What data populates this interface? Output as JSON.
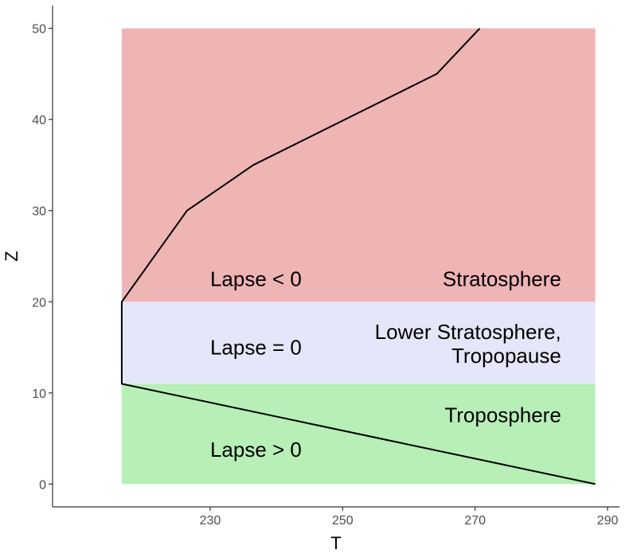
{
  "chart_data": {
    "type": "line",
    "title": "",
    "xlabel": "T",
    "ylabel": "Z",
    "xlim": [
      206.2,
      291.8
    ],
    "ylim": [
      -2.5,
      52.5
    ],
    "x_ticks": [
      230,
      250,
      270,
      290
    ],
    "y_ticks": [
      0,
      10,
      20,
      30,
      40,
      50
    ],
    "grid": false,
    "legend": "none",
    "regions": [
      {
        "name": "troposphere",
        "x_range": [
          216.65,
          288.15
        ],
        "y_range": [
          0,
          11
        ],
        "color": "#b7efb7"
      },
      {
        "name": "tropopause",
        "x_range": [
          216.65,
          288.15
        ],
        "y_range": [
          11,
          20
        ],
        "color": "#e6e6fa"
      },
      {
        "name": "stratosphere",
        "x_range": [
          216.65,
          288.15
        ],
        "y_range": [
          20,
          50
        ],
        "color": "#efb4b4"
      }
    ],
    "series": [
      {
        "color": "#000000",
        "points": [
          {
            "x": 288.15,
            "y": 0
          },
          {
            "x": 216.65,
            "y": 11
          },
          {
            "x": 216.65,
            "y": 20
          },
          {
            "x": 226.5,
            "y": 30
          },
          {
            "x": 236.5,
            "y": 35
          },
          {
            "x": 264.2,
            "y": 45
          },
          {
            "x": 270.7,
            "y": 50
          }
        ]
      }
    ],
    "annotations": [
      {
        "id": "lapse-neg",
        "lines": [
          "Lapse < 0"
        ],
        "x": 230,
        "y": 22.5,
        "align": "start"
      },
      {
        "id": "lapse-zero",
        "lines": [
          "Lapse = 0"
        ],
        "x": 230,
        "y": 15,
        "align": "start"
      },
      {
        "id": "lapse-pos",
        "lines": [
          "Lapse > 0"
        ],
        "x": 230,
        "y": 3.8,
        "align": "start"
      },
      {
        "id": "stratosphere",
        "lines": [
          "Stratosphere"
        ],
        "x": 283,
        "y": 22.5,
        "align": "end"
      },
      {
        "id": "lower-stratosphere",
        "lines": [
          "Lower Stratosphere,",
          "Tropopause"
        ],
        "x": 283,
        "y": 16.7,
        "align": "end"
      },
      {
        "id": "troposphere",
        "lines": [
          "Troposphere"
        ],
        "x": 283,
        "y": 7.6,
        "align": "end"
      }
    ],
    "axis_color": "#333333",
    "line_color": "#000000"
  }
}
